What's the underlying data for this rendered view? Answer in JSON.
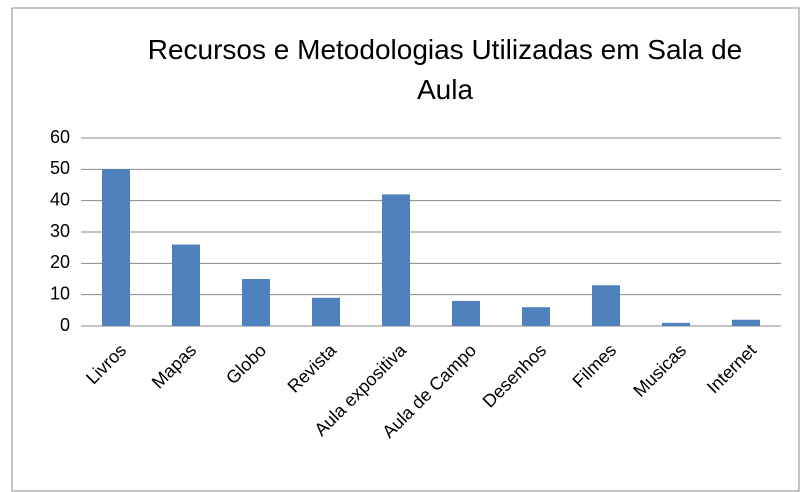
{
  "chart_data": {
    "type": "bar",
    "title": "Recursos e Metodologias Utilizadas em Sala de Aula",
    "categories": [
      "Livros",
      "Mapas",
      "Globo",
      "Revista",
      "Aula expositiva",
      "Aula de Campo",
      "Desenhos",
      "Filmes",
      "Musicas",
      "Internet"
    ],
    "values": [
      50,
      26,
      15,
      9,
      42,
      8,
      6,
      13,
      1,
      2
    ],
    "color": "#4f81bd",
    "ylim": [
      0,
      60
    ],
    "yticks": [
      0,
      10,
      20,
      30,
      40,
      50,
      60
    ],
    "grid": true
  }
}
